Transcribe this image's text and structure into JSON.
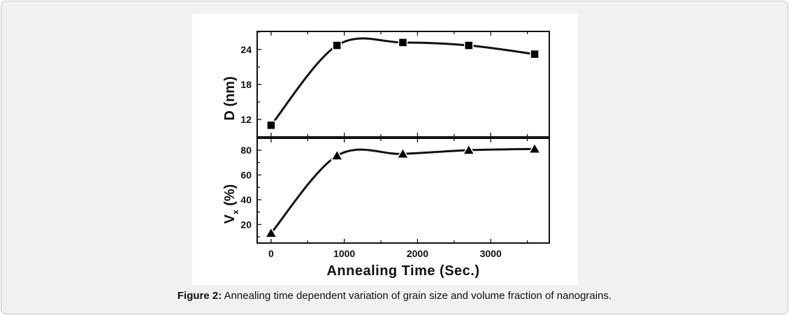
{
  "caption": {
    "label": "Figure 2:",
    "text": " Annealing time dependent variation of grain size and volume fraction of nanograins."
  },
  "chart_data": [
    {
      "type": "line",
      "panel": "top",
      "ylabel": "D (nm)",
      "xlabel": "",
      "x": [
        0,
        900,
        1800,
        2700,
        3600
      ],
      "values": [
        11.0,
        24.7,
        25.2,
        24.7,
        23.2
      ],
      "errors": [
        0.3,
        0.6,
        0.6,
        0.6,
        0.6
      ],
      "marker": "square",
      "xlim": [
        -190,
        3800
      ],
      "ylim": [
        9,
        27.1
      ],
      "yticks": [
        12,
        18,
        24
      ],
      "xticks": [
        0,
        1000,
        2000,
        3000
      ],
      "grid": false
    },
    {
      "type": "line",
      "panel": "bottom",
      "ylabel": "V",
      "ylabel_sub": "x",
      "ylabel_suffix": " (%)",
      "xlabel": "Annealing Time (Sec.)",
      "x": [
        0,
        900,
        1800,
        2700,
        3600
      ],
      "values": [
        13,
        75.5,
        77,
        80,
        81
      ],
      "errors": [
        1,
        2,
        2,
        2,
        2
      ],
      "marker": "triangle",
      "xlim": [
        -190,
        3800
      ],
      "ylim": [
        5,
        89.6
      ],
      "yticks": [
        20,
        40,
        60,
        80
      ],
      "xticks": [
        0,
        1000,
        2000,
        3000
      ],
      "grid": false
    }
  ]
}
